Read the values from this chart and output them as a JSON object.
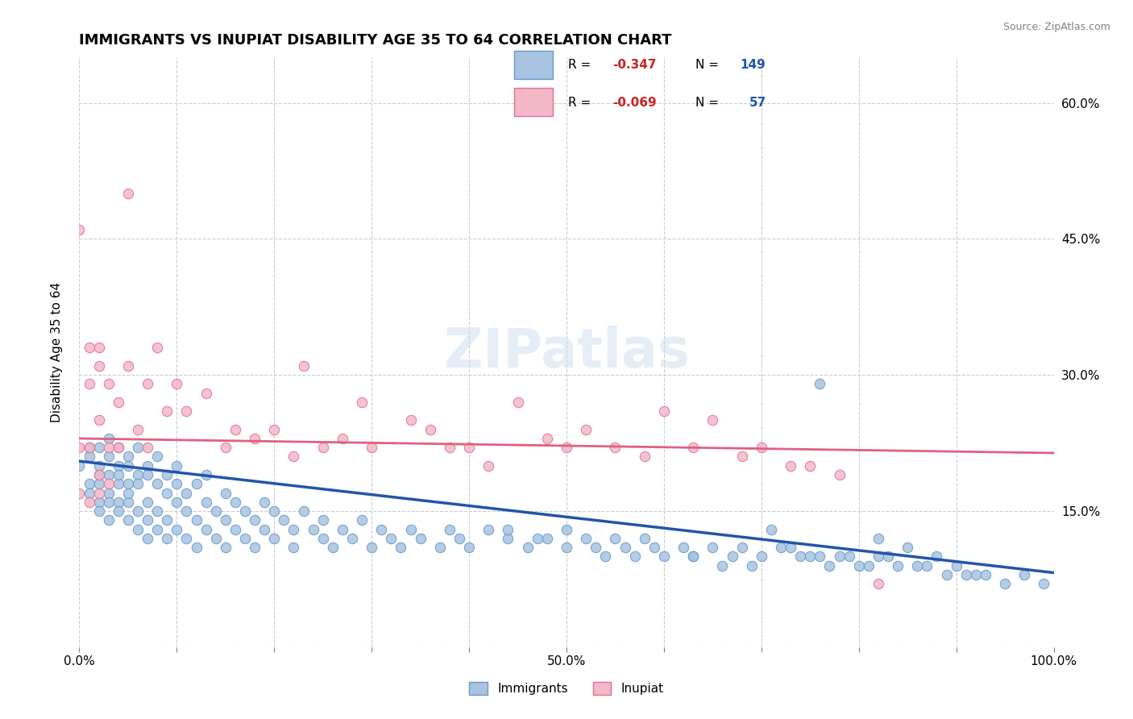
{
  "title": "IMMIGRANTS VS INUPIAT DISABILITY AGE 35 TO 64 CORRELATION CHART",
  "source_text": "Source: ZipAtlas.com",
  "xlabel": "",
  "ylabel": "Disability Age 35 to 64",
  "xlim": [
    0.0,
    1.0
  ],
  "ylim": [
    0.0,
    0.65
  ],
  "xticks": [
    0.0,
    0.1,
    0.2,
    0.3,
    0.4,
    0.5,
    0.6,
    0.7,
    0.8,
    0.9,
    1.0
  ],
  "xticklabels": [
    "0.0%",
    "",
    "",
    "",
    "",
    "50.0%",
    "",
    "",
    "",
    "",
    "100.0%"
  ],
  "ytick_positions": [
    0.0,
    0.15,
    0.3,
    0.45,
    0.6
  ],
  "yticklabels": [
    "",
    "15.0%",
    "30.0%",
    "45.0%",
    "60.0%"
  ],
  "immigrants_color": "#a8c4e0",
  "immigrants_edge_color": "#6699cc",
  "inupiat_color": "#f4b8c8",
  "inupiat_edge_color": "#e07090",
  "trendline_blue": "#2255aa",
  "trendline_pink": "#e06080",
  "legend_r1": "R = -0.347",
  "legend_n1": "N = 149",
  "legend_r2": "R = -0.069",
  "legend_n2": "N =  57",
  "watermark": "ZIPatlas",
  "background_color": "#ffffff",
  "grid_color": "#cccccc",
  "immigrants_x": [
    0.0,
    0.01,
    0.01,
    0.01,
    0.01,
    0.02,
    0.02,
    0.02,
    0.02,
    0.02,
    0.02,
    0.03,
    0.03,
    0.03,
    0.03,
    0.03,
    0.03,
    0.04,
    0.04,
    0.04,
    0.04,
    0.04,
    0.04,
    0.05,
    0.05,
    0.05,
    0.05,
    0.05,
    0.05,
    0.06,
    0.06,
    0.06,
    0.06,
    0.06,
    0.07,
    0.07,
    0.07,
    0.07,
    0.07,
    0.08,
    0.08,
    0.08,
    0.08,
    0.09,
    0.09,
    0.09,
    0.09,
    0.1,
    0.1,
    0.1,
    0.1,
    0.11,
    0.11,
    0.11,
    0.12,
    0.12,
    0.12,
    0.13,
    0.13,
    0.13,
    0.14,
    0.14,
    0.15,
    0.15,
    0.15,
    0.16,
    0.16,
    0.17,
    0.17,
    0.18,
    0.18,
    0.19,
    0.19,
    0.2,
    0.2,
    0.21,
    0.22,
    0.22,
    0.23,
    0.24,
    0.25,
    0.25,
    0.26,
    0.27,
    0.28,
    0.29,
    0.3,
    0.31,
    0.32,
    0.33,
    0.34,
    0.35,
    0.37,
    0.38,
    0.39,
    0.4,
    0.42,
    0.44,
    0.46,
    0.48,
    0.5,
    0.5,
    0.52,
    0.53,
    0.54,
    0.55,
    0.56,
    0.57,
    0.58,
    0.59,
    0.6,
    0.62,
    0.63,
    0.65,
    0.67,
    0.68,
    0.7,
    0.72,
    0.74,
    0.76,
    0.78,
    0.8,
    0.82,
    0.84,
    0.87,
    0.9,
    0.82,
    0.85,
    0.88,
    0.71,
    0.73,
    0.75,
    0.77,
    0.79,
    0.81,
    0.83,
    0.86,
    0.89,
    0.92,
    0.95,
    0.97,
    0.99,
    0.93,
    0.76,
    0.91,
    0.63,
    0.66,
    0.69,
    0.44,
    0.47
  ],
  "immigrants_y": [
    0.2,
    0.22,
    0.18,
    0.17,
    0.21,
    0.19,
    0.16,
    0.22,
    0.15,
    0.2,
    0.18,
    0.21,
    0.17,
    0.19,
    0.16,
    0.23,
    0.14,
    0.2,
    0.18,
    0.16,
    0.22,
    0.15,
    0.19,
    0.18,
    0.16,
    0.21,
    0.14,
    0.2,
    0.17,
    0.19,
    0.15,
    0.22,
    0.13,
    0.18,
    0.2,
    0.16,
    0.14,
    0.19,
    0.12,
    0.18,
    0.15,
    0.21,
    0.13,
    0.17,
    0.19,
    0.14,
    0.12,
    0.18,
    0.16,
    0.2,
    0.13,
    0.17,
    0.15,
    0.12,
    0.18,
    0.14,
    0.11,
    0.16,
    0.19,
    0.13,
    0.15,
    0.12,
    0.17,
    0.14,
    0.11,
    0.16,
    0.13,
    0.15,
    0.12,
    0.14,
    0.11,
    0.16,
    0.13,
    0.15,
    0.12,
    0.14,
    0.13,
    0.11,
    0.15,
    0.13,
    0.12,
    0.14,
    0.11,
    0.13,
    0.12,
    0.14,
    0.11,
    0.13,
    0.12,
    0.11,
    0.13,
    0.12,
    0.11,
    0.13,
    0.12,
    0.11,
    0.13,
    0.12,
    0.11,
    0.12,
    0.11,
    0.13,
    0.12,
    0.11,
    0.1,
    0.12,
    0.11,
    0.1,
    0.12,
    0.11,
    0.1,
    0.11,
    0.1,
    0.11,
    0.1,
    0.11,
    0.1,
    0.11,
    0.1,
    0.1,
    0.1,
    0.09,
    0.1,
    0.09,
    0.09,
    0.09,
    0.12,
    0.11,
    0.1,
    0.13,
    0.11,
    0.1,
    0.09,
    0.1,
    0.09,
    0.1,
    0.09,
    0.08,
    0.08,
    0.07,
    0.08,
    0.07,
    0.08,
    0.29,
    0.08,
    0.1,
    0.09,
    0.09,
    0.13,
    0.12
  ],
  "inupiat_x": [
    0.0,
    0.0,
    0.0,
    0.01,
    0.01,
    0.01,
    0.01,
    0.02,
    0.02,
    0.02,
    0.02,
    0.02,
    0.03,
    0.03,
    0.03,
    0.04,
    0.04,
    0.05,
    0.05,
    0.06,
    0.07,
    0.07,
    0.08,
    0.09,
    0.1,
    0.11,
    0.13,
    0.15,
    0.16,
    0.18,
    0.2,
    0.22,
    0.23,
    0.25,
    0.27,
    0.29,
    0.3,
    0.34,
    0.36,
    0.38,
    0.4,
    0.42,
    0.45,
    0.48,
    0.5,
    0.52,
    0.55,
    0.58,
    0.6,
    0.63,
    0.65,
    0.68,
    0.7,
    0.73,
    0.75,
    0.78,
    0.82
  ],
  "inupiat_y": [
    0.22,
    0.46,
    0.17,
    0.33,
    0.22,
    0.16,
    0.29,
    0.33,
    0.19,
    0.17,
    0.25,
    0.31,
    0.22,
    0.29,
    0.18,
    0.27,
    0.22,
    0.31,
    0.5,
    0.24,
    0.22,
    0.29,
    0.33,
    0.26,
    0.29,
    0.26,
    0.28,
    0.22,
    0.24,
    0.23,
    0.24,
    0.21,
    0.31,
    0.22,
    0.23,
    0.27,
    0.22,
    0.25,
    0.24,
    0.22,
    0.22,
    0.2,
    0.27,
    0.23,
    0.22,
    0.24,
    0.22,
    0.21,
    0.26,
    0.22,
    0.25,
    0.21,
    0.22,
    0.2,
    0.2,
    0.19,
    0.07
  ],
  "trend_imm_x0": 0.0,
  "trend_imm_y0": 0.205,
  "trend_imm_x1": 1.0,
  "trend_imm_y1": 0.082,
  "trend_inu_x0": 0.0,
  "trend_inu_y0": 0.23,
  "trend_inu_x1": 1.0,
  "trend_inu_y1": 0.214
}
